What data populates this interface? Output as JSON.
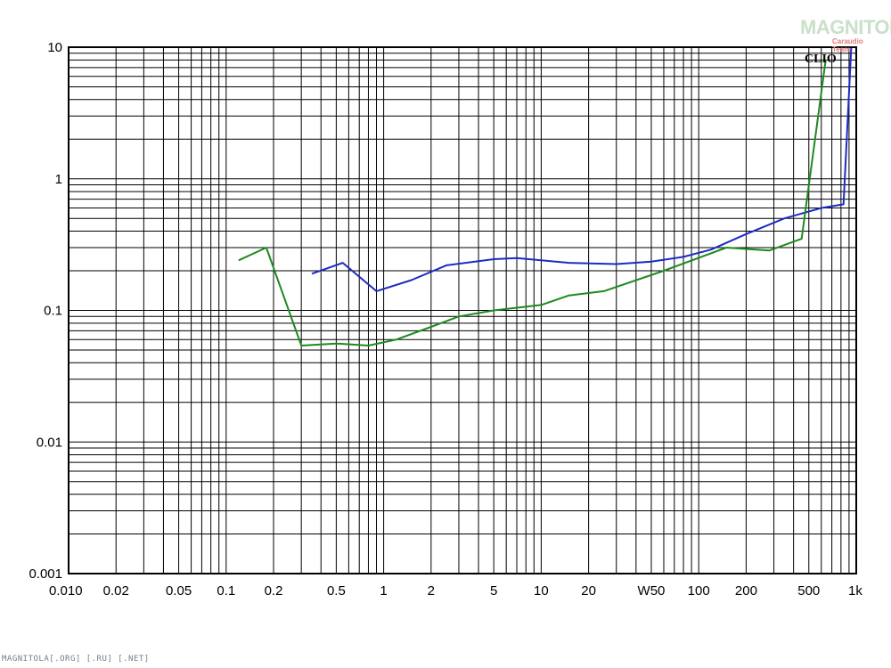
{
  "chart_data": {
    "type": "line",
    "x_scale": "log",
    "y_scale": "log",
    "xlim": [
      0.01,
      1000
    ],
    "ylim": [
      0.001,
      10
    ],
    "grid": true,
    "x_ticks": [
      {
        "value": 0.01,
        "label": "0.010"
      },
      {
        "value": 0.02,
        "label": "0.02"
      },
      {
        "value": 0.05,
        "label": "0.05"
      },
      {
        "value": 0.1,
        "label": "0.1"
      },
      {
        "value": 0.2,
        "label": "0.2"
      },
      {
        "value": 0.5,
        "label": "0.5"
      },
      {
        "value": 1,
        "label": "1"
      },
      {
        "value": 2,
        "label": "2"
      },
      {
        "value": 5,
        "label": "5"
      },
      {
        "value": 10,
        "label": "10"
      },
      {
        "value": 20,
        "label": "20"
      },
      {
        "value": 50,
        "label": "W50"
      },
      {
        "value": 100,
        "label": "100"
      },
      {
        "value": 200,
        "label": "200"
      },
      {
        "value": 500,
        "label": "500"
      },
      {
        "value": 1000,
        "label": "1k"
      }
    ],
    "y_ticks": [
      {
        "value": 10,
        "label": "10"
      },
      {
        "value": 1,
        "label": "1"
      },
      {
        "value": 0.1,
        "label": "0.1"
      },
      {
        "value": 0.01,
        "label": "0.01"
      },
      {
        "value": 0.001,
        "label": "0.001"
      }
    ],
    "series": [
      {
        "color": "#1c2bc4",
        "points": [
          [
            0.35,
            0.19
          ],
          [
            0.55,
            0.23
          ],
          [
            0.9,
            0.14
          ],
          [
            1.5,
            0.17
          ],
          [
            2.5,
            0.22
          ],
          [
            5,
            0.245
          ],
          [
            7,
            0.25
          ],
          [
            15,
            0.23
          ],
          [
            30,
            0.225
          ],
          [
            50,
            0.235
          ],
          [
            80,
            0.255
          ],
          [
            120,
            0.29
          ],
          [
            200,
            0.38
          ],
          [
            350,
            0.5
          ],
          [
            600,
            0.6
          ],
          [
            830,
            0.64
          ],
          [
            930,
            10
          ],
          [
            1000,
            10
          ]
        ]
      },
      {
        "color": "#1e8a1e",
        "points": [
          [
            0.12,
            0.24
          ],
          [
            0.18,
            0.3
          ],
          [
            0.3,
            0.054
          ],
          [
            0.5,
            0.056
          ],
          [
            0.8,
            0.054
          ],
          [
            1.2,
            0.06
          ],
          [
            2,
            0.075
          ],
          [
            3,
            0.09
          ],
          [
            5,
            0.1
          ],
          [
            10,
            0.11
          ],
          [
            15,
            0.13
          ],
          [
            25,
            0.14
          ],
          [
            60,
            0.2
          ],
          [
            150,
            0.3
          ],
          [
            280,
            0.285
          ],
          [
            450,
            0.35
          ],
          [
            640,
            8
          ]
        ]
      }
    ],
    "annotation": "CLIO"
  },
  "logo": {
    "main": "MAGNITOLA",
    "sub": "Caraudio Team"
  },
  "footer": "MAGNITOLA[.ORG] [.RU] [.NET]"
}
